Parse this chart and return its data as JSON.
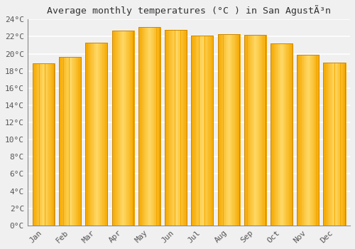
{
  "title": "Average monthly temperatures (°C ) in San AgustÃ³n",
  "months": [
    "Jan",
    "Feb",
    "Mar",
    "Apr",
    "May",
    "Jun",
    "Jul",
    "Aug",
    "Sep",
    "Oct",
    "Nov",
    "Dec"
  ],
  "values": [
    18.9,
    19.6,
    21.3,
    22.7,
    23.1,
    22.8,
    22.1,
    22.3,
    22.2,
    21.2,
    19.9,
    19.0
  ],
  "bar_color_left": "#F5A800",
  "bar_color_center": "#FFD966",
  "bar_color_right": "#F5A800",
  "ylim": [
    0,
    24
  ],
  "ytick_step": 2,
  "background_color": "#f0f0f0",
  "grid_color": "#ffffff",
  "title_fontsize": 9.5,
  "tick_fontsize": 8,
  "bar_width": 0.82
}
